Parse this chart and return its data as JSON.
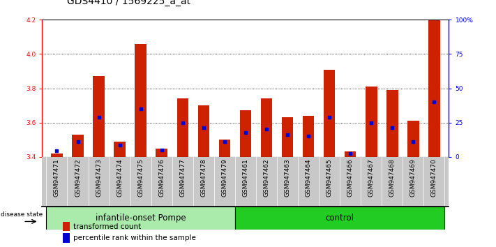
{
  "title": "GDS4410 / 1569225_a_at",
  "samples": [
    "GSM947471",
    "GSM947472",
    "GSM947473",
    "GSM947474",
    "GSM947475",
    "GSM947476",
    "GSM947477",
    "GSM947478",
    "GSM947479",
    "GSM947461",
    "GSM947462",
    "GSM947463",
    "GSM947464",
    "GSM947465",
    "GSM947466",
    "GSM947467",
    "GSM947468",
    "GSM947469",
    "GSM947470"
  ],
  "red_values": [
    3.42,
    3.53,
    3.87,
    3.49,
    4.06,
    3.45,
    3.74,
    3.7,
    3.5,
    3.67,
    3.74,
    3.63,
    3.64,
    3.91,
    3.43,
    3.81,
    3.79,
    3.61,
    4.2
  ],
  "blue_values": [
    3.435,
    3.49,
    3.63,
    3.47,
    3.68,
    3.44,
    3.6,
    3.57,
    3.49,
    3.54,
    3.56,
    3.53,
    3.52,
    3.63,
    3.42,
    3.6,
    3.57,
    3.49,
    3.72
  ],
  "groups": [
    {
      "label": "infantile-onset Pompe",
      "start": 0,
      "end": 9,
      "color": "#AAEAAA"
    },
    {
      "label": "control",
      "start": 9,
      "end": 19,
      "color": "#22CC22"
    }
  ],
  "ymin": 3.4,
  "ymax": 4.2,
  "yticks": [
    3.4,
    3.6,
    3.8,
    4.0,
    4.2
  ],
  "right_yticks": [
    0,
    25,
    50,
    75,
    100
  ],
  "right_yticklabels": [
    "0",
    "25",
    "50",
    "75",
    "100%"
  ],
  "bar_color": "#CC2200",
  "blue_color": "#0000CC",
  "bar_width": 0.55,
  "title_fontsize": 10,
  "tick_fontsize": 6.5,
  "label_fontsize": 7.5,
  "group_label_fontsize": 8.5,
  "grid_yticks": [
    3.6,
    3.8,
    4.0
  ],
  "tick_bg_color": "#C8C8C8",
  "disease_state_label": "disease state"
}
